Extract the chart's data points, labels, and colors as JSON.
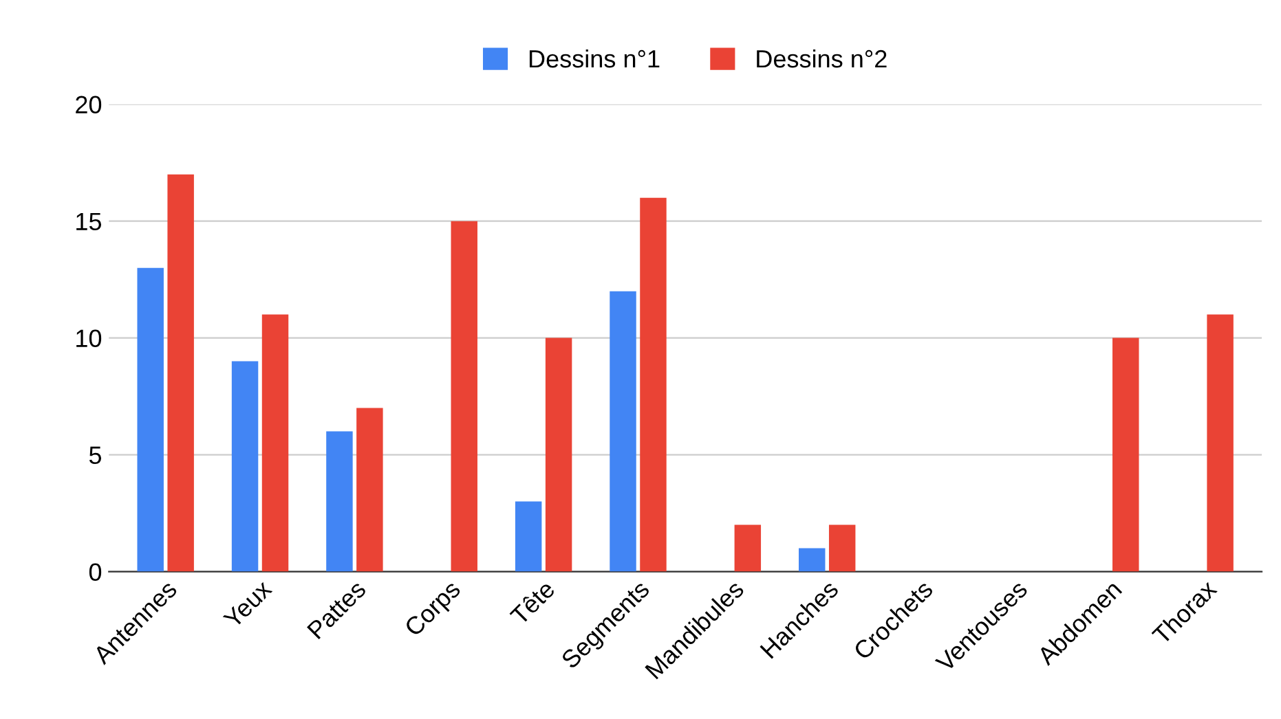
{
  "chart_data": {
    "type": "bar",
    "categories": [
      "Antennes",
      "Yeux",
      "Pattes",
      "Corps",
      "Tête",
      "Segments",
      "Mandibules",
      "Hanches",
      "Crochets",
      "Ventouses",
      "Abdomen",
      "Thorax"
    ],
    "series": [
      {
        "name": "Dessins n°1",
        "color": "#4285f4",
        "values": [
          13,
          9,
          6,
          0,
          3,
          12,
          0,
          1,
          0,
          0,
          0,
          0
        ]
      },
      {
        "name": "Dessins n°2",
        "color": "#ea4335",
        "values": [
          17,
          11,
          7,
          15,
          10,
          16,
          2,
          2,
          0,
          0,
          10,
          11
        ]
      }
    ],
    "ylim": [
      0,
      20
    ],
    "yticks": [
      0,
      5,
      10,
      15,
      20
    ],
    "grid": "y",
    "legend": "top"
  }
}
